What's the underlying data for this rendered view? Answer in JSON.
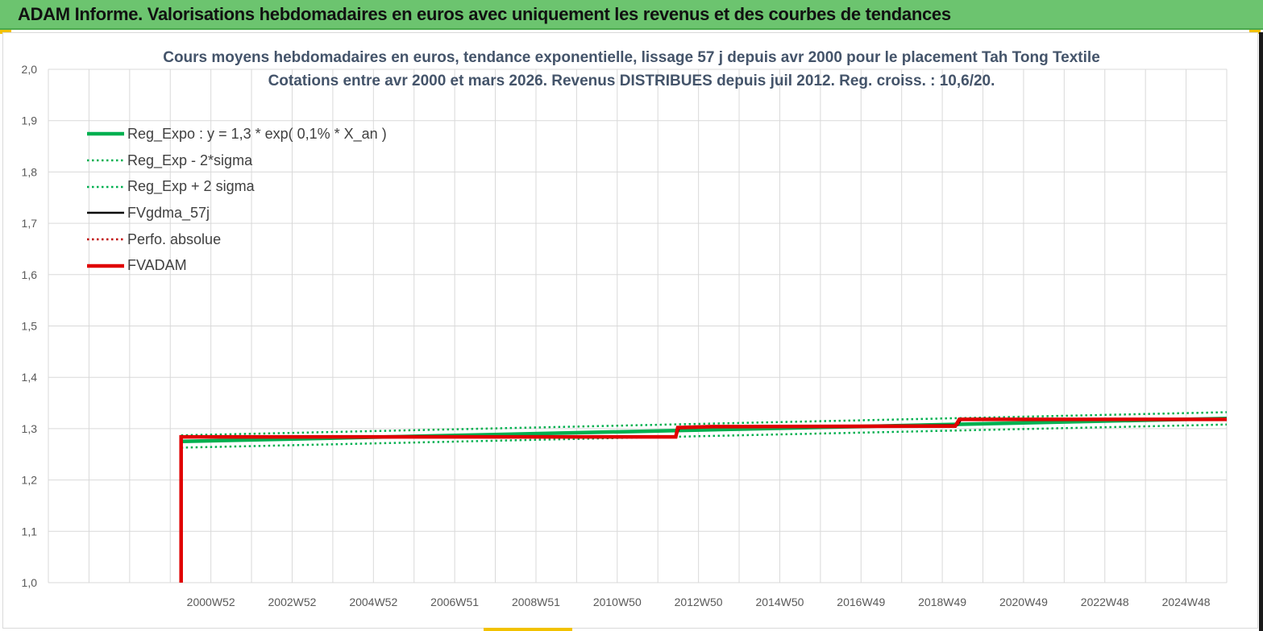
{
  "header": {
    "title": "ADAM Informe. Valorisations hebdomadaires en euros avec uniquement les revenus et des courbes de tendances"
  },
  "colors": {
    "header_bg": "#6cc46f",
    "reg_expo": "#00b050",
    "sigma": "#00b050",
    "fvgdma": "#000000",
    "perfo": "#c00000",
    "fvadam": "#e00000",
    "grid": "#d9d9d9",
    "title_text": "#44546a"
  },
  "chart_data": {
    "type": "line",
    "title_line1": "Cours moyens hebdomadaires en euros, tendance exponentielle, lissage 57 j depuis avr 2000 pour le placement Tah Tong Textile",
    "title_line2": "Cotations entre avr 2000 et mars 2026.  Revenus DISTRIBUES depuis juil 2012.  Reg. croiss. : 10,6/20.",
    "ylim": [
      1.0,
      2.0
    ],
    "y_ticks": [
      "1,0",
      "1,1",
      "1,2",
      "1,3",
      "1,4",
      "1,5",
      "1,6",
      "1,7",
      "1,8",
      "1,9",
      "2,0"
    ],
    "x_tick_labels": [
      "2000W52",
      "2002W52",
      "2004W52",
      "2006W51",
      "2008W51",
      "2010W50",
      "2012W50",
      "2014W50",
      "2016W49",
      "2018W49",
      "2020W49",
      "2022W48",
      "2024W48"
    ],
    "xlim": [
      1997.0,
      2026.3
    ],
    "grid": true,
    "legend_position": "top-left",
    "series": [
      {
        "name": "Reg_Expo : y = 1,3 * exp( 0,1% *  X_an )",
        "style": "solid-thick",
        "color": "#00b050",
        "x": [
          2000.3,
          2026.3
        ],
        "y": [
          1.275,
          1.32
        ]
      },
      {
        "name": "Reg_Exp - 2*sigma",
        "style": "dotted",
        "color": "#00b050",
        "x": [
          2000.3,
          2026.3
        ],
        "y": [
          1.263,
          1.308
        ]
      },
      {
        "name": "Reg_Exp + 2 sigma",
        "style": "dotted",
        "color": "#00b050",
        "x": [
          2000.3,
          2026.3
        ],
        "y": [
          1.287,
          1.332
        ]
      },
      {
        "name": "FVgdma_57j",
        "style": "solid",
        "color": "#000000",
        "x": [
          2000.3,
          2012.6,
          2012.7,
          2019.6,
          2019.7,
          2026.3
        ],
        "y": [
          1.285,
          1.285,
          1.303,
          1.307,
          1.318,
          1.319
        ]
      },
      {
        "name": "Perfo. absolue",
        "style": "dotted",
        "color": "#c00000",
        "x": [
          2000.3,
          2012.6,
          2012.7,
          2019.6,
          2019.7,
          2026.3
        ],
        "y": [
          1.284,
          1.284,
          1.302,
          1.306,
          1.317,
          1.318
        ]
      },
      {
        "name": "FVADAM",
        "style": "solid-thick",
        "color": "#e00000",
        "x": [
          2000.3,
          2000.3,
          2012.6,
          2012.65,
          2013.5,
          2019.55,
          2019.65,
          2026.3
        ],
        "y": [
          1.0,
          1.284,
          1.284,
          1.302,
          1.304,
          1.305,
          1.318,
          1.318
        ]
      }
    ]
  }
}
